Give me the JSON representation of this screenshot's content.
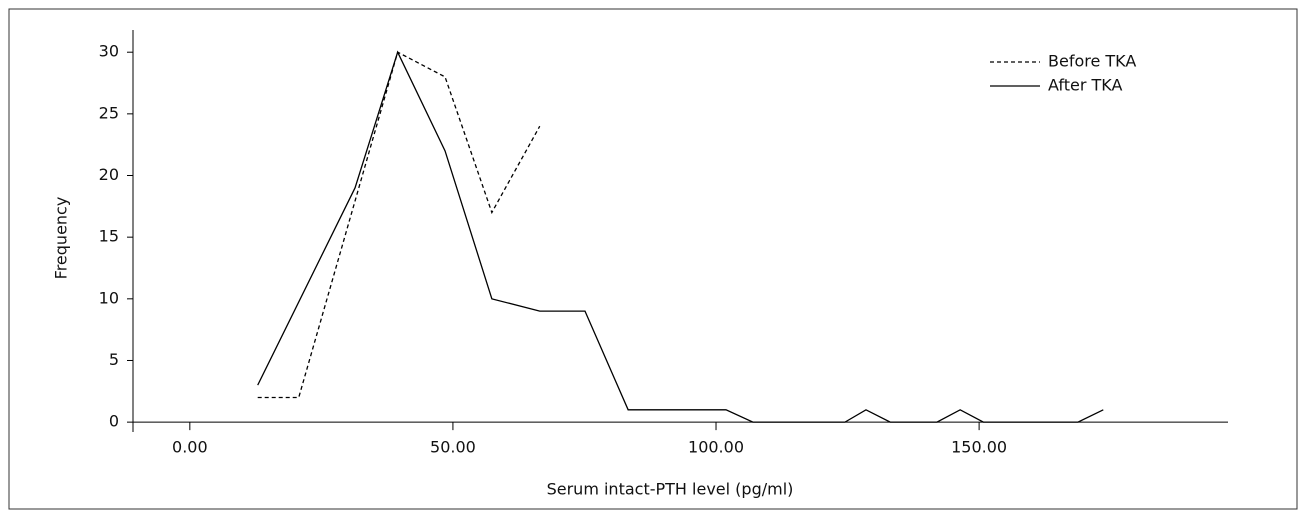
{
  "chart_data": {
    "type": "line",
    "x_label": "Serum intact-PTH level (pg/ml)",
    "y_label": "Frequency",
    "xlim": [
      -10.8,
      197.3
    ],
    "ylim": [
      -0.8,
      31.8
    ],
    "xticks": [
      {
        "value": 0,
        "label": "0.00"
      },
      {
        "value": 50,
        "label": "50.00"
      },
      {
        "value": 100,
        "label": "100.00"
      },
      {
        "value": 150,
        "label": "150.00"
      }
    ],
    "yticks": [
      0,
      5,
      10,
      15,
      20,
      25,
      30
    ],
    "legend": "upper right",
    "series": [
      {
        "name": "Before TKA",
        "color": "#000000",
        "line_style": "dashed",
        "x": [
          12.9,
          20.7,
          39.5,
          48.5,
          57.4,
          66.5
        ],
        "values": [
          2,
          2,
          30,
          28,
          17,
          24
        ]
      },
      {
        "name": "After TKA",
        "color": "#000000",
        "line_style": "solid",
        "x": [
          12.9,
          31.4,
          39.5,
          48.5,
          57.4,
          66.5,
          75.1,
          83.3,
          101.9,
          107,
          124.5,
          128.5,
          133.1,
          142,
          146.4,
          150.8,
          168.8,
          173.6
        ],
        "values": [
          3,
          19,
          30,
          22,
          10,
          9,
          9,
          1,
          1,
          0,
          0,
          1,
          0,
          0,
          1,
          0,
          0,
          1
        ]
      }
    ]
  }
}
